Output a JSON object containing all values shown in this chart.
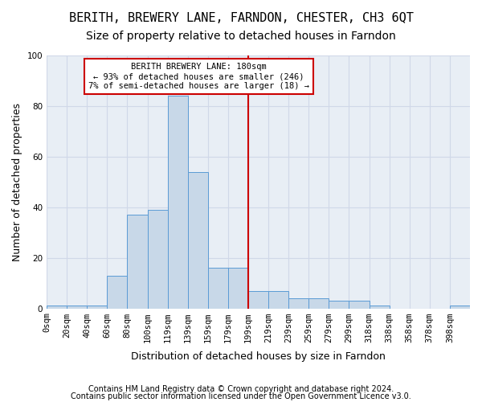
{
  "title1": "BERITH, BREWERY LANE, FARNDON, CHESTER, CH3 6QT",
  "title2": "Size of property relative to detached houses in Farndon",
  "xlabel": "Distribution of detached houses by size in Farndon",
  "ylabel": "Number of detached properties",
  "footer1": "Contains HM Land Registry data © Crown copyright and database right 2024.",
  "footer2": "Contains public sector information licensed under the Open Government Licence v3.0.",
  "bin_labels": [
    "0sqm",
    "20sqm",
    "40sqm",
    "60sqm",
    "80sqm",
    "100sqm",
    "119sqm",
    "139sqm",
    "159sqm",
    "179sqm",
    "199sqm",
    "219sqm",
    "239sqm",
    "259sqm",
    "279sqm",
    "299sqm",
    "318sqm",
    "338sqm",
    "358sqm",
    "378sqm",
    "398sqm"
  ],
  "bar_values": [
    1,
    1,
    1,
    13,
    37,
    39,
    84,
    54,
    16,
    16,
    7,
    7,
    4,
    4,
    3,
    3,
    1,
    0,
    0,
    0,
    1
  ],
  "bar_color": "#c8d8e8",
  "bar_edge_color": "#5b9bd5",
  "vline_x_index": 9,
  "marker_label": "BERITH BREWERY LANE: 180sqm",
  "annotation_line1": "← 93% of detached houses are smaller (246)",
  "annotation_line2": "7% of semi-detached houses are larger (18) →",
  "annotation_box_color": "#ffffff",
  "annotation_box_edge": "#cc0000",
  "vline_color": "#cc0000",
  "ylim": [
    0,
    100
  ],
  "yticks": [
    0,
    20,
    40,
    60,
    80,
    100
  ],
  "grid_color": "#d0d8e8",
  "bg_color": "#e8eef5",
  "title1_fontsize": 11,
  "title2_fontsize": 10,
  "xlabel_fontsize": 9,
  "ylabel_fontsize": 9,
  "tick_fontsize": 7.5,
  "footer_fontsize": 7
}
